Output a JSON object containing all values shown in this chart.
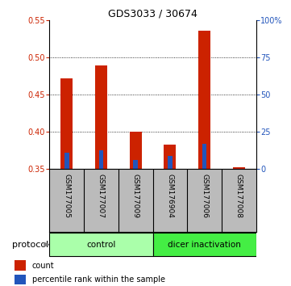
{
  "title": "GDS3033 / 30674",
  "samples": [
    "GSM177005",
    "GSM177007",
    "GSM177009",
    "GSM176904",
    "GSM177006",
    "GSM177008"
  ],
  "red_values": [
    0.472,
    0.489,
    0.4,
    0.382,
    0.536,
    0.352
  ],
  "blue_values": [
    0.372,
    0.375,
    0.362,
    0.367,
    0.383,
    0.35
  ],
  "ylim_left": [
    0.35,
    0.55
  ],
  "ylim_right": [
    0,
    100
  ],
  "yticks_left": [
    0.35,
    0.4,
    0.45,
    0.5,
    0.55
  ],
  "yticks_right": [
    0,
    25,
    50,
    75,
    100
  ],
  "ytick_labels_right": [
    "0",
    "25",
    "50",
    "75",
    "100%"
  ],
  "grid_lines": [
    0.4,
    0.45,
    0.5
  ],
  "red_color": "#cc2200",
  "blue_color": "#2255bb",
  "label_color_red": "#cc2200",
  "label_color_blue": "#2255bb",
  "protocol_label": "protocol",
  "legend_red": "count",
  "legend_blue": "percentile rank within the sample",
  "sample_area_color": "#bbbbbb",
  "control_bg": "#aaffaa",
  "dicer_bg": "#44ee44",
  "control_label": "control",
  "dicer_label": "dicer inactivation",
  "n_control": 3,
  "n_dicer": 3
}
